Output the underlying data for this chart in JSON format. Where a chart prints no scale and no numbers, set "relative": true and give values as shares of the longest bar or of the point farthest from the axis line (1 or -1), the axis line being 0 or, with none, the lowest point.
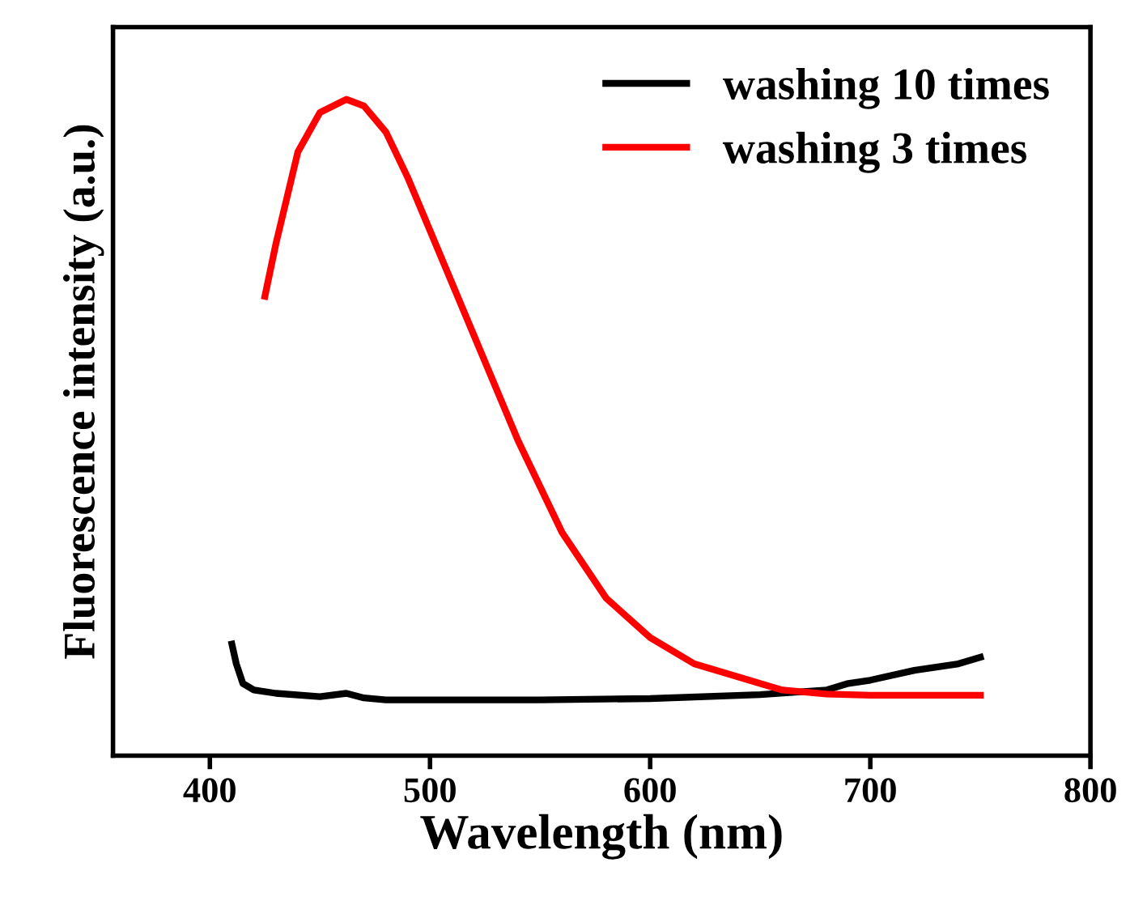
{
  "chart_data": {
    "type": "line",
    "xlabel": "Wavelength (nm)",
    "ylabel": "Fluorescence intensity (a.u.)",
    "relative": true,
    "xlim": [
      356,
      800
    ],
    "xticks": [
      400,
      500,
      600,
      700,
      800
    ],
    "legend": "top right",
    "grid": false,
    "series": [
      {
        "name": "washing 10 times",
        "color": "#000000",
        "x": [
          410,
          412,
          415,
          420,
          430,
          450,
          462,
          470,
          480,
          500,
          550,
          600,
          650,
          680,
          690,
          700,
          720,
          740,
          750
        ],
        "values": [
          0.17,
          0.14,
          0.11,
          0.1,
          0.095,
          0.09,
          0.095,
          0.088,
          0.085,
          0.085,
          0.085,
          0.087,
          0.093,
          0.1,
          0.11,
          0.115,
          0.13,
          0.14,
          0.15
        ]
      },
      {
        "name": "washing 3 times",
        "color": "#ff0000",
        "x": [
          425,
          430,
          440,
          450,
          462,
          470,
          480,
          490,
          500,
          520,
          540,
          560,
          580,
          600,
          620,
          640,
          660,
          680,
          700,
          750
        ],
        "values": [
          0.7,
          0.78,
          0.92,
          0.98,
          1.0,
          0.99,
          0.95,
          0.88,
          0.8,
          0.64,
          0.48,
          0.34,
          0.24,
          0.18,
          0.14,
          0.12,
          0.1,
          0.094,
          0.092,
          0.092
        ]
      }
    ]
  }
}
